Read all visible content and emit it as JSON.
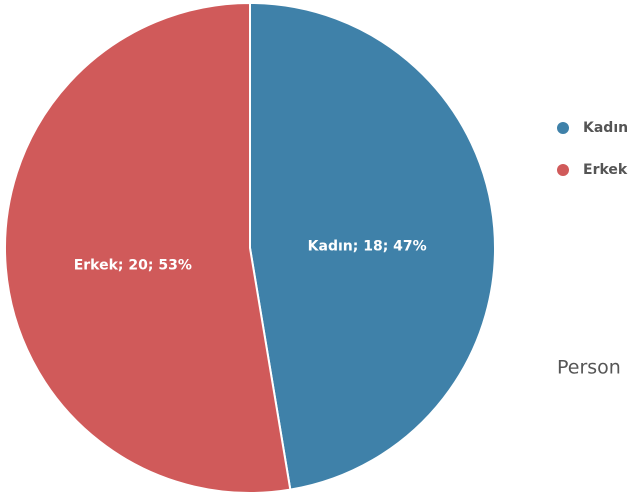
{
  "chart_data": {
    "type": "pie",
    "title": "Person",
    "categories": [
      "Kadın",
      "Erkek"
    ],
    "values": [
      18,
      20
    ],
    "value_labels": [
      "Kadın; 18; 47%",
      "Erkek; 20; 53%"
    ],
    "colors": [
      "#3f81a9",
      "#d05a5a"
    ],
    "legend": "right"
  }
}
